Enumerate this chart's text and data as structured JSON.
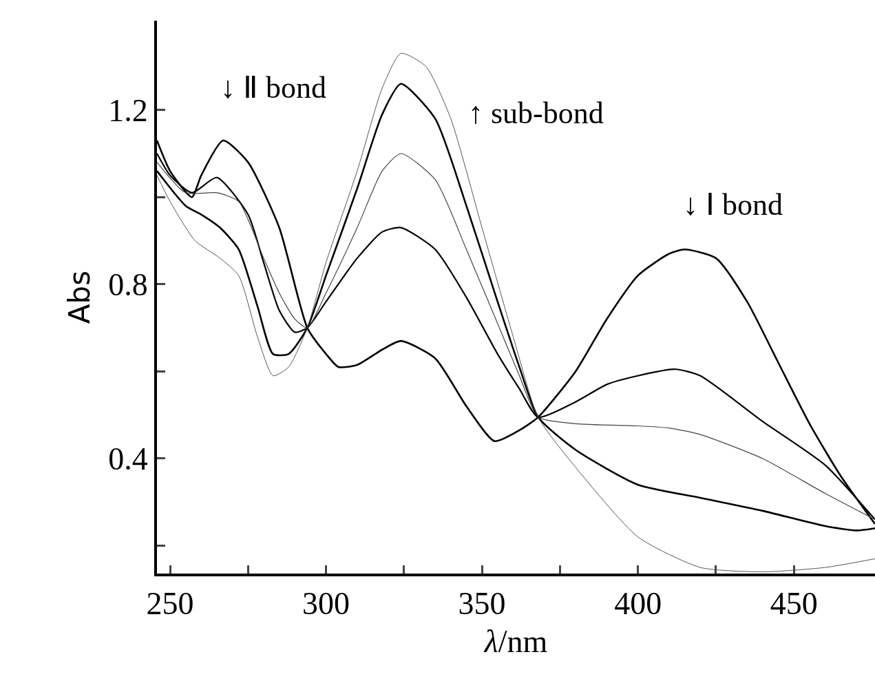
{
  "chart_data": {
    "type": "line",
    "xlabel": "λ/nm",
    "ylabel": "Abs",
    "xlim": [
      245.8,
      476
    ],
    "ylim": [
      0.136,
      1.405
    ],
    "xticks": [
      250,
      {
        "value": 275,
        "label": null
      },
      300,
      {
        "value": 325,
        "label": null
      },
      350,
      {
        "value": 375,
        "label": null
      },
      400,
      {
        "value": 425,
        "label": null
      },
      450
    ],
    "yticks": [
      {
        "value": 0.2,
        "label": null
      },
      0.4,
      {
        "value": 0.6,
        "label": null
      },
      0.8,
      {
        "value": 1.0,
        "label": null
      },
      1.2
    ],
    "marker": "none",
    "line_style": "solid",
    "series": [
      {
        "color": "#000000",
        "x": [
          245.8,
          250,
          257,
          260,
          267,
          275,
          285,
          294,
          300,
          304,
          310,
          318,
          324,
          335,
          345,
          354,
          362,
          368,
          380,
          390,
          400,
          410,
          415,
          425,
          435,
          445,
          455,
          465,
          476
        ],
        "values": [
          1.13,
          1.06,
          1.0,
          1.05,
          1.13,
          1.08,
          0.93,
          0.7,
          0.64,
          0.61,
          0.615,
          0.65,
          0.67,
          0.63,
          0.52,
          0.44,
          0.465,
          0.495,
          0.6,
          0.72,
          0.82,
          0.87,
          0.88,
          0.86,
          0.76,
          0.62,
          0.48,
          0.36,
          0.25
        ]
      },
      {
        "color": "#000000",
        "x": [
          245.8,
          250,
          257,
          265,
          275,
          280,
          285,
          290,
          294,
          300,
          310,
          318,
          324,
          335,
          345,
          355,
          362,
          368,
          380,
          390,
          400,
          412,
          420,
          440,
          460,
          476
        ],
        "values": [
          1.1,
          1.05,
          1.01,
          1.045,
          0.96,
          0.85,
          0.74,
          0.69,
          0.7,
          0.76,
          0.86,
          0.92,
          0.93,
          0.88,
          0.77,
          0.64,
          0.56,
          0.495,
          0.53,
          0.57,
          0.59,
          0.605,
          0.59,
          0.485,
          0.385,
          0.26
        ]
      },
      {
        "color": "#444444",
        "x": [
          245.8,
          255,
          265,
          272,
          280,
          285,
          290,
          294,
          300,
          310,
          318,
          324,
          335,
          345,
          355,
          362,
          368,
          380,
          400,
          410,
          420,
          440,
          460,
          476
        ],
        "values": [
          1.08,
          1.01,
          1.01,
          0.99,
          0.86,
          0.78,
          0.72,
          0.7,
          0.78,
          0.93,
          1.06,
          1.1,
          1.04,
          0.88,
          0.71,
          0.59,
          0.495,
          0.48,
          0.475,
          0.47,
          0.455,
          0.4,
          0.32,
          0.26
        ]
      },
      {
        "color": "#000000",
        "x": [
          245.8,
          255,
          260,
          266,
          272,
          278,
          283,
          288,
          294,
          300,
          310,
          318,
          324,
          335,
          345,
          355,
          362,
          368,
          380,
          400,
          420,
          440,
          460,
          470,
          476
        ],
        "values": [
          1.06,
          0.98,
          0.96,
          0.93,
          0.88,
          0.75,
          0.64,
          0.64,
          0.7,
          0.82,
          1.02,
          1.19,
          1.26,
          1.18,
          0.98,
          0.76,
          0.61,
          0.495,
          0.42,
          0.34,
          0.31,
          0.28,
          0.245,
          0.235,
          0.24
        ]
      },
      {
        "color": "#555555",
        "x": [
          245.8,
          250,
          258,
          266,
          272,
          278,
          283,
          288,
          294,
          300,
          310,
          318,
          324,
          332,
          340,
          350,
          360,
          368,
          380,
          400,
          420,
          440,
          460,
          476
        ],
        "values": [
          1.05,
          0.99,
          0.9,
          0.86,
          0.82,
          0.68,
          0.59,
          0.61,
          0.7,
          0.85,
          1.06,
          1.25,
          1.33,
          1.3,
          1.18,
          0.93,
          0.68,
          0.495,
          0.38,
          0.22,
          0.15,
          0.14,
          0.15,
          0.17
        ]
      }
    ],
    "annotations": [
      "↓ Ⅱ bond",
      "↑ sub-bond",
      "↓ Ⅰ bond"
    ]
  }
}
